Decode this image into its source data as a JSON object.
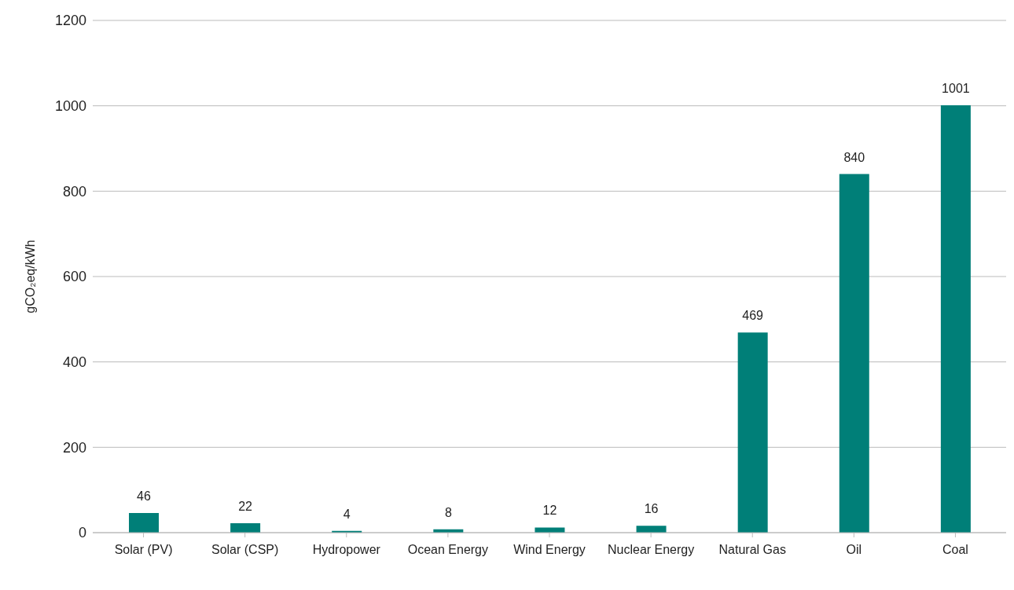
{
  "chart_data": {
    "type": "bar",
    "ylabel": "gCO₂eq/kWh",
    "categories": [
      "Solar (PV)",
      "Solar (CSP)",
      "Hydropower",
      "Ocean Energy",
      "Wind Energy",
      "Nuclear Energy",
      "Natural Gas",
      "Oil",
      "Coal"
    ],
    "values": [
      46,
      22,
      4,
      8,
      12,
      16,
      469,
      840,
      1001
    ],
    "color": "#007f78",
    "ylim": [
      0,
      1200
    ],
    "yticks": [
      0,
      200,
      400,
      600,
      800,
      1000,
      1200
    ],
    "grid": "y",
    "data_labels": true
  }
}
